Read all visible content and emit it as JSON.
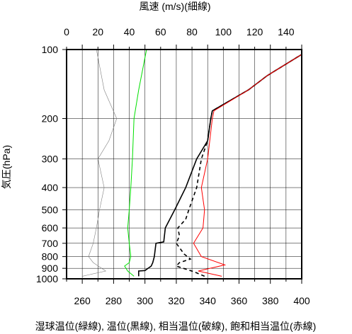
{
  "chart_data": {
    "type": "line",
    "title": "",
    "top_axis_label": "風速 (m/s)(細線)",
    "bottom_axis_label": "湿球温位(緑線), 温位(黒線), 相当温位(破線), 飽和相当温位(赤線)",
    "y_axis_label": "気圧(hPa)",
    "wind_axis": {
      "range": [
        0,
        150
      ],
      "ticks": [
        "0",
        "20",
        "40",
        "60",
        "80",
        "100",
        "120",
        "140"
      ]
    },
    "theta_axis": {
      "range": [
        250,
        400
      ],
      "ticks": [
        "260",
        "280",
        "300",
        "320",
        "340",
        "360",
        "380",
        "400"
      ]
    },
    "pressure_axis": {
      "scale": "log",
      "range": [
        1000,
        100
      ],
      "ticks": [
        "100",
        "200",
        "300",
        "400",
        "500",
        "600",
        "700",
        "800",
        "900",
        "1000"
      ]
    },
    "grid": true,
    "series": [
      {
        "color": "#808080",
        "style": "thin",
        "axis": "wind",
        "p": [
          975,
          925,
          850,
          800,
          700,
          600,
          500,
          400,
          300,
          250,
          200,
          150,
          100
        ],
        "value": [
          10,
          25,
          17,
          14,
          17,
          19,
          21,
          24,
          20,
          27,
          32,
          24,
          19
        ]
      },
      {
        "color": "#00e000",
        "style": "solid",
        "axis": "theta",
        "p": [
          975,
          925,
          880,
          850,
          800,
          700,
          600,
          500,
          400,
          300,
          200,
          150,
          100
        ],
        "value": [
          293,
          289,
          287,
          290,
          291,
          290,
          289,
          290,
          291,
          292,
          293,
          296,
          301
        ]
      },
      {
        "color": "#000000",
        "style": "solid",
        "axis": "theta",
        "p": [
          975,
          925,
          920,
          880,
          850,
          800,
          700,
          690,
          600,
          500,
          400,
          300,
          250,
          200,
          185,
          150,
          130,
          105
        ],
        "value": [
          296,
          296,
          300,
          304,
          305,
          306,
          307,
          312,
          313,
          319,
          326,
          333,
          340,
          342,
          343,
          366,
          378,
          400
        ]
      },
      {
        "color": "#000000",
        "style": "dashed",
        "axis": "theta",
        "p": [
          975,
          930,
          880,
          850,
          820,
          780,
          700,
          650,
          600,
          550,
          500,
          400,
          300,
          250,
          200,
          185,
          150,
          130,
          105
        ],
        "value": [
          338,
          331,
          320,
          322,
          329,
          325,
          320,
          322,
          321,
          326,
          328,
          333,
          336,
          340,
          342,
          343,
          366,
          378,
          400
        ]
      },
      {
        "color": "#ff0000",
        "style": "solid",
        "axis": "theta",
        "p": [
          975,
          925,
          870,
          800,
          700,
          600,
          500,
          400,
          300,
          200,
          185,
          150,
          130,
          105
        ],
        "value": [
          349,
          334,
          351,
          336,
          331,
          337,
          338,
          336,
          340,
          343,
          344,
          366,
          378,
          400
        ]
      }
    ]
  }
}
